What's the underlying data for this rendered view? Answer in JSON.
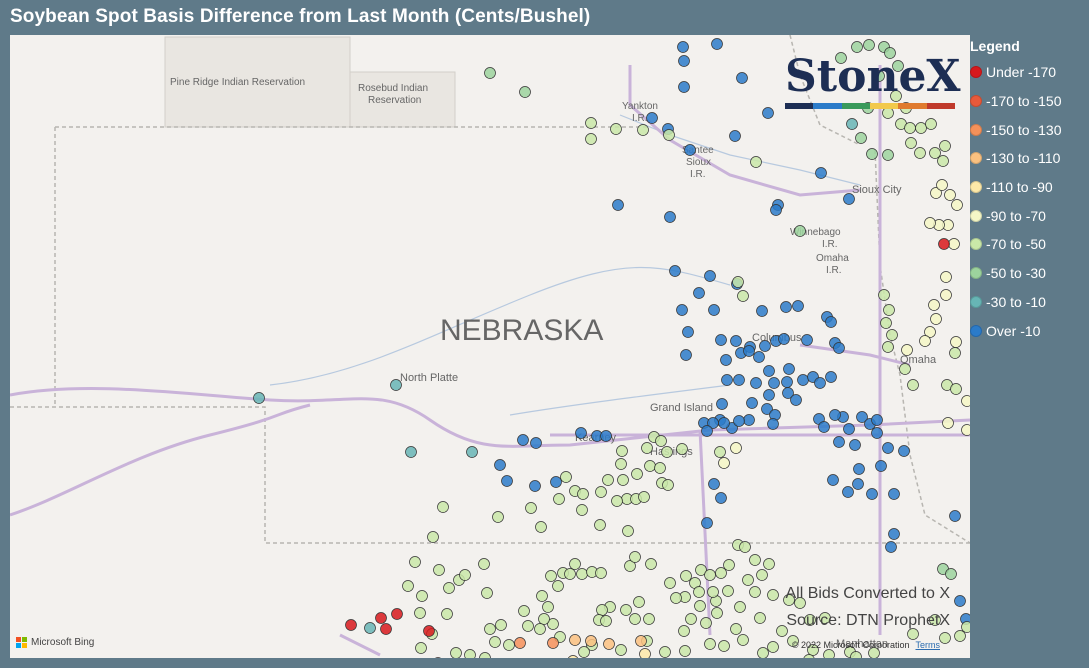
{
  "title": "Soybean Spot Basis Difference from Last Month (Cents/Bushel)",
  "legend": {
    "title": "Legend",
    "items": [
      {
        "label": "Under -170",
        "color": "#d7191c"
      },
      {
        "label": "-170 to -150",
        "color": "#e8593a"
      },
      {
        "label": "-150 to -130",
        "color": "#f4915a"
      },
      {
        "label": "-130 to -110",
        "color": "#fac180"
      },
      {
        "label": "-110 to -90",
        "color": "#fde9a8"
      },
      {
        "label": "-90 to -70",
        "color": "#f4f7c6"
      },
      {
        "label": "-70 to -50",
        "color": "#c9e8a8"
      },
      {
        "label": "-50 to -30",
        "color": "#9cd39d"
      },
      {
        "label": "-30 to -10",
        "color": "#67b5b5"
      },
      {
        "label": "Over -10",
        "color": "#2b7bc9"
      }
    ]
  },
  "map": {
    "state_label": "NEBRASKA",
    "places": [
      "Pine Ridge Indian Reservation",
      "Rosebud Indian Reservation",
      "Yankton I.R.",
      "Santee Sioux I.R.",
      "Sioux City",
      "Winnebago I.R.",
      "Omaha I.R.",
      "Columbus",
      "Omaha",
      "North Platte",
      "Grand Island",
      "Kearney",
      "Hastings",
      "Manhattan"
    ],
    "note_line1": "All Bids Converted to X",
    "note_line2": "Source: DTN ProphetX",
    "bing_label": "Microsoft Bing",
    "copyright": "© 2022 Microsoft Corporation",
    "terms": "Terms"
  },
  "logo": {
    "text": "StoneX",
    "bar_colors": [
      "#1d2e54",
      "#2b7bc9",
      "#3a9a5b",
      "#f2c94c",
      "#e07a2e",
      "#c0392b"
    ]
  }
}
